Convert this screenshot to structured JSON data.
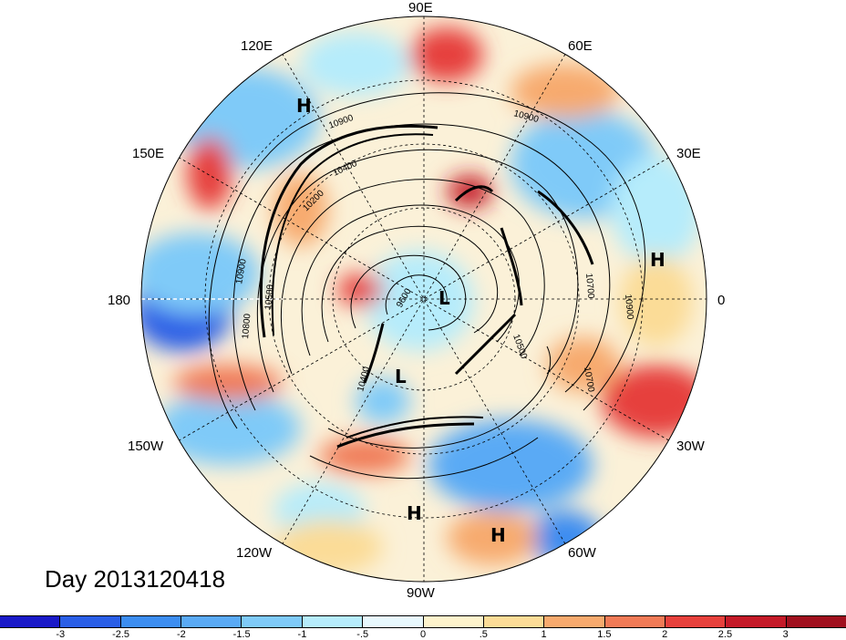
{
  "title": "Day 2013120418",
  "longitude_labels": {
    "n90e": "90E",
    "n60e": "60E",
    "n30e": "30E",
    "n0": "0",
    "n30w": "30W",
    "n60w": "60W",
    "n90w": "90W",
    "n120w": "120W",
    "n150w": "150W",
    "n180": "180",
    "n150e": "150E",
    "n120e": "120E"
  },
  "pressure_centers": {
    "h1": "H",
    "h2": "H",
    "h3": "H",
    "h4": "H",
    "l1": "L",
    "l2": "L"
  },
  "contour_labels": {
    "c1": "10900",
    "c2": "10900",
    "c3": "10400",
    "c4": "10200",
    "c5": "10900",
    "c6": "10500",
    "c7": "10800",
    "c8": "9600",
    "c9": "10400",
    "c10": "10500",
    "c11": "10700",
    "c12": "10900",
    "c13": "10700"
  },
  "colorbar": {
    "colors": [
      "#1a1ac8",
      "#2a5ee6",
      "#3c8df0",
      "#5aaaf5",
      "#7fcaf8",
      "#b6ecfb",
      "#e8f8fd",
      "#fdf3cc",
      "#fbdc97",
      "#f7aa6e",
      "#f07a56",
      "#e6413c",
      "#c41a28",
      "#a0101e"
    ],
    "ticks": [
      "-3",
      "-2.5",
      "-2",
      "-1.5",
      "-1",
      "-.5",
      "0",
      ".5",
      "1",
      "1.5",
      "2",
      "2.5",
      "3"
    ]
  }
}
